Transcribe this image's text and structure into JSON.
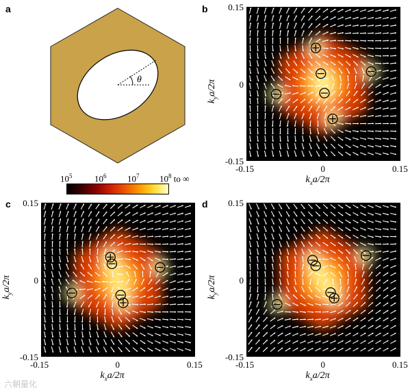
{
  "panel_labels": {
    "a": "a",
    "b": "b",
    "c": "c",
    "d": "d"
  },
  "hexagon": {
    "fill": "#c9a24a",
    "angle_label": "θ"
  },
  "colorbar": {
    "labels": [
      "10",
      "10",
      "10",
      "10"
    ],
    "exponents": [
      "5",
      "6",
      "7",
      "8"
    ],
    "suffix": " to ∞",
    "colormap": [
      "#000000",
      "#3a0000",
      "#8b0000",
      "#cc2200",
      "#ee5500",
      "#ff9900",
      "#ffdd33",
      "#ffffcc"
    ]
  },
  "axes": {
    "x_ticks": [
      "-0.15",
      "0",
      "0.15"
    ],
    "y_ticks": [
      "0.15",
      "0",
      "-0.15"
    ],
    "xlabel": {
      "k": "k",
      "sub": "x",
      "rest": "a/2π"
    },
    "ylabel": {
      "k": "k",
      "sub": "y",
      "rest": "a/2π"
    }
  },
  "chart_data": [
    {
      "type": "scatter",
      "panel": "b",
      "xlim": [
        -0.15,
        0.15
      ],
      "ylim": [
        -0.15,
        0.15
      ],
      "points": [
        {
          "x": -0.092,
          "y": -0.02,
          "sign": "-"
        },
        {
          "x": -0.015,
          "y": 0.07,
          "sign": "+"
        },
        {
          "x": -0.005,
          "y": 0.02,
          "sign": "-"
        },
        {
          "x": 0.002,
          "y": -0.018,
          "sign": "-"
        },
        {
          "x": 0.018,
          "y": -0.068,
          "sign": "+"
        },
        {
          "x": 0.093,
          "y": 0.024,
          "sign": "-"
        }
      ]
    },
    {
      "type": "scatter",
      "panel": "c",
      "xlim": [
        -0.15,
        0.15
      ],
      "ylim": [
        -0.15,
        0.15
      ],
      "points": [
        {
          "x": -0.09,
          "y": -0.026,
          "sign": "-"
        },
        {
          "x": -0.015,
          "y": 0.044,
          "sign": "+"
        },
        {
          "x": -0.012,
          "y": 0.031,
          "sign": "-"
        },
        {
          "x": 0.005,
          "y": -0.03,
          "sign": "-"
        },
        {
          "x": 0.01,
          "y": -0.045,
          "sign": "+"
        },
        {
          "x": 0.082,
          "y": 0.024,
          "sign": "-"
        }
      ]
    },
    {
      "type": "scatter",
      "panel": "d",
      "xlim": [
        -0.15,
        0.15
      ],
      "ylim": [
        -0.15,
        0.15
      ],
      "points": [
        {
          "x": -0.09,
          "y": -0.048,
          "sign": "-"
        },
        {
          "x": -0.021,
          "y": 0.038,
          "sign": "-"
        },
        {
          "x": -0.015,
          "y": 0.027,
          "sign": "-"
        },
        {
          "x": 0.014,
          "y": -0.025,
          "sign": "-"
        },
        {
          "x": 0.021,
          "y": -0.036,
          "sign": "+"
        },
        {
          "x": 0.083,
          "y": 0.047,
          "sign": "-"
        }
      ]
    }
  ],
  "watermark": "六朝量化"
}
